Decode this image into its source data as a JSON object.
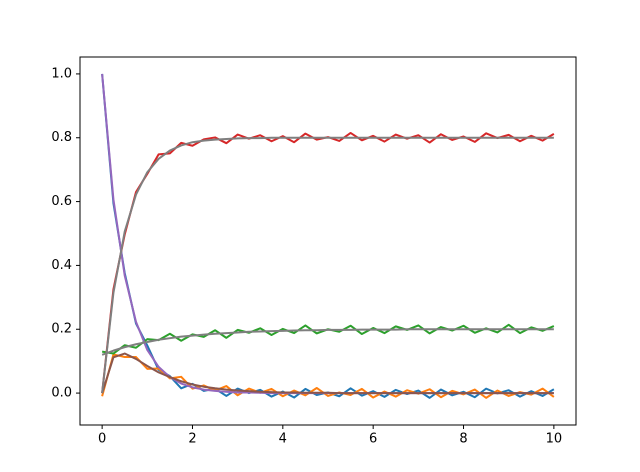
{
  "chart_data": {
    "type": "line",
    "x": [
      0,
      0.25,
      0.5,
      0.75,
      1,
      1.25,
      1.5,
      1.75,
      2,
      2.25,
      2.5,
      2.75,
      3,
      3.25,
      3.5,
      3.75,
      4,
      4.25,
      4.5,
      4.75,
      5,
      5.25,
      5.5,
      5.75,
      6,
      6.25,
      6.5,
      6.75,
      7,
      7.25,
      7.5,
      7.75,
      8,
      8.25,
      8.5,
      8.75,
      9,
      9.25,
      9.5,
      9.75,
      10
    ],
    "series": [
      {
        "color": "#1f77b4",
        "values": [
          1.0,
          0.595,
          0.376,
          0.218,
          0.149,
          0.073,
          0.053,
          0.015,
          0.029,
          0.007,
          0.014,
          -0.009,
          0.014,
          0,
          0.01,
          -0.011,
          0.005,
          -0.014,
          0.013,
          -0.006,
          0.002,
          -0.01,
          0.015,
          -0.008,
          0.006,
          -0.012,
          0.01,
          -0.003,
          0.008,
          -0.015,
          0.011,
          -0.007,
          0.004,
          -0.013,
          0.014,
          -0.001,
          0.009,
          -0.011,
          0.006,
          -0.009,
          0.012
        ]
      },
      {
        "color": "#ff7f0e",
        "values": [
          -0.01,
          0.121,
          0.113,
          0.113,
          0.076,
          0.077,
          0.046,
          0.051,
          0.014,
          0.024,
          0.008,
          0.022,
          -0.007,
          0.014,
          0.001,
          0.013,
          -0.01,
          0.008,
          -0.007,
          0.016,
          -0.009,
          0.002,
          -0.006,
          0.013,
          -0.014,
          0.005,
          -0.011,
          0.009,
          -0.002,
          0.012,
          -0.013,
          0.007,
          -0.004,
          0.011,
          -0.015,
          0.008,
          -0.009,
          0.003,
          -0.005,
          0.014,
          -0.012
        ]
      },
      {
        "color": "#2ca02c",
        "values": [
          0.13,
          0.124,
          0.15,
          0.142,
          0.169,
          0.166,
          0.186,
          0.164,
          0.184,
          0.176,
          0.197,
          0.173,
          0.198,
          0.189,
          0.203,
          0.182,
          0.201,
          0.188,
          0.212,
          0.187,
          0.2,
          0.192,
          0.211,
          0.185,
          0.204,
          0.188,
          0.209,
          0.198,
          0.212,
          0.187,
          0.207,
          0.196,
          0.211,
          0.189,
          0.203,
          0.19,
          0.214,
          0.188,
          0.206,
          0.195,
          0.21
        ]
      },
      {
        "color": "#d62728",
        "values": [
          0,
          0.325,
          0.497,
          0.63,
          0.687,
          0.748,
          0.751,
          0.784,
          0.775,
          0.795,
          0.801,
          0.783,
          0.81,
          0.797,
          0.808,
          0.789,
          0.805,
          0.786,
          0.813,
          0.794,
          0.802,
          0.79,
          0.815,
          0.792,
          0.806,
          0.788,
          0.81,
          0.797,
          0.808,
          0.785,
          0.811,
          0.793,
          0.804,
          0.787,
          0.814,
          0.799,
          0.809,
          0.789,
          0.806,
          0.791,
          0.812
        ]
      },
      {
        "color": "#9467bd",
        "values": [
          1,
          0.607,
          0.368,
          0.223,
          0.135,
          0.082,
          0.05,
          0.03,
          0.018,
          0.011,
          0.007,
          0.004,
          0.002,
          0.002,
          0.001,
          0,
          0,
          0,
          0,
          0,
          0,
          0,
          0,
          0,
          0,
          0,
          0,
          0,
          0,
          0,
          0,
          0,
          0,
          0,
          0,
          0,
          0,
          0,
          0,
          0,
          0
        ]
      },
      {
        "color": "#8c564b",
        "values": [
          0,
          0.112,
          0.124,
          0.107,
          0.085,
          0.065,
          0.05,
          0.037,
          0.027,
          0.02,
          0.015,
          0.011,
          0.008,
          0.006,
          0.004,
          0.003,
          0.002,
          0.002,
          0.001,
          0.001,
          0.001,
          0,
          0,
          0,
          0,
          0,
          0,
          0,
          0,
          0,
          0,
          0,
          0,
          0,
          0,
          0,
          0,
          0,
          0,
          0,
          0
        ]
      },
      {
        "color": "#7f7f7f",
        "values": [
          0.12,
          0.133,
          0.144,
          0.153,
          0.16,
          0.167,
          0.172,
          0.177,
          0.18,
          0.183,
          0.186,
          0.188,
          0.19,
          0.192,
          0.193,
          0.194,
          0.195,
          0.196,
          0.197,
          0.197,
          0.198,
          0.198,
          0.198,
          0.199,
          0.199,
          0.199,
          0.199,
          0.2,
          0.2,
          0.2,
          0.2,
          0.2,
          0.2,
          0.2,
          0.2,
          0.2,
          0.2,
          0.2,
          0.2,
          0.2,
          0.2
        ]
      },
      {
        "color": "#7f7f7f",
        "values": [
          0,
          0.314,
          0.506,
          0.622,
          0.692,
          0.734,
          0.76,
          0.776,
          0.786,
          0.791,
          0.794,
          0.796,
          0.798,
          0.799,
          0.799,
          0.8,
          0.8,
          0.8,
          0.8,
          0.8,
          0.8,
          0.8,
          0.8,
          0.8,
          0.8,
          0.8,
          0.8,
          0.8,
          0.8,
          0.8,
          0.8,
          0.8,
          0.8,
          0.8,
          0.8,
          0.8,
          0.8,
          0.8,
          0.8,
          0.8,
          0.8
        ]
      }
    ],
    "xlim": [
      -0.49,
      10.49
    ],
    "xticks": [
      0,
      2,
      4,
      6,
      8,
      10
    ],
    "ylim": [
      -0.1,
      1.053
    ],
    "yticks": [
      {
        "value": 0,
        "label": "0.0"
      },
      {
        "value": 0.2,
        "label": "0.2"
      },
      {
        "value": 0.4,
        "label": "0.4"
      },
      {
        "value": 0.6,
        "label": "0.6"
      },
      {
        "value": 0.8,
        "label": "0.8"
      },
      {
        "value": 1,
        "label": "1.0"
      }
    ]
  }
}
